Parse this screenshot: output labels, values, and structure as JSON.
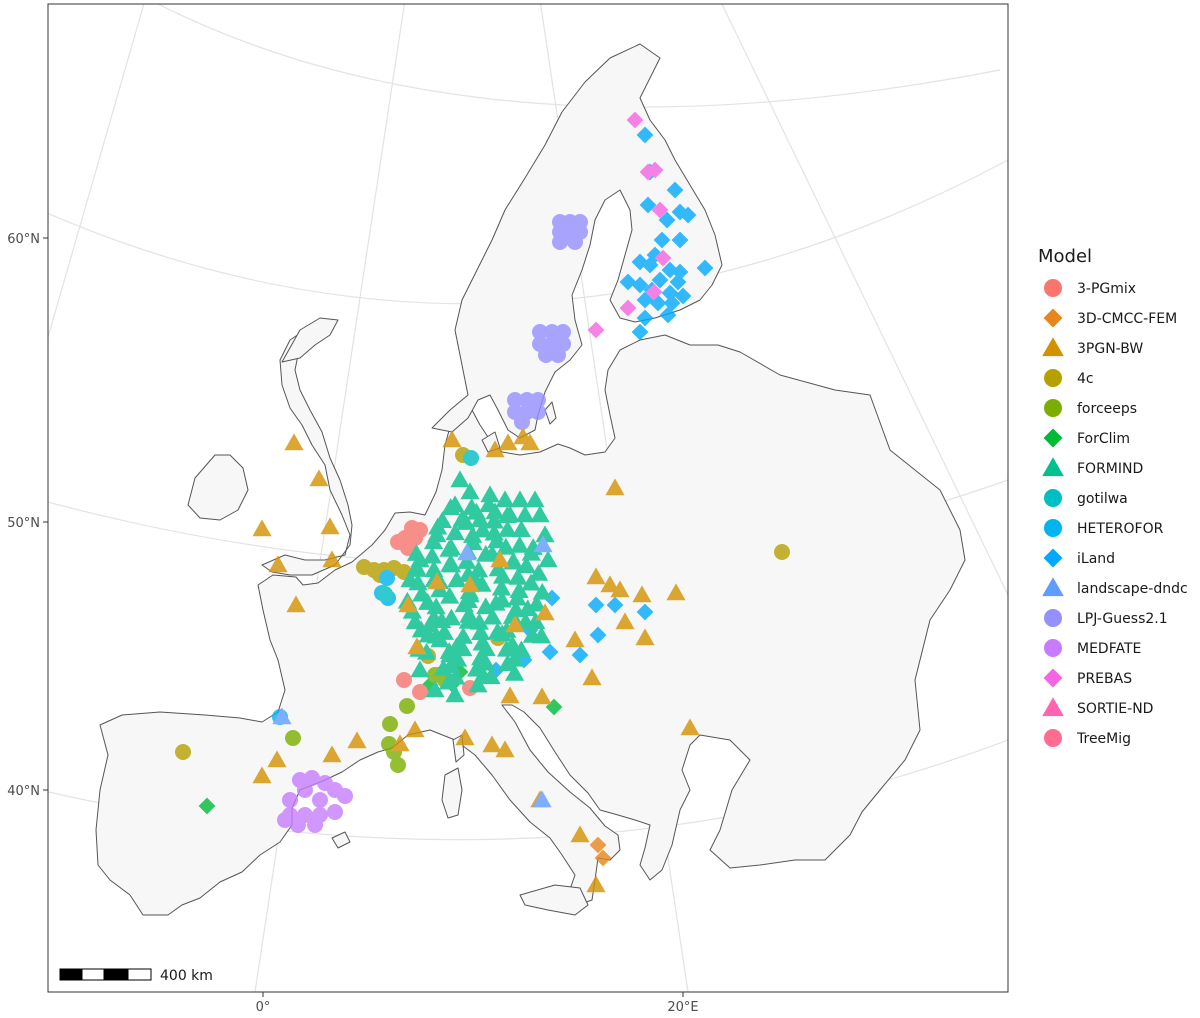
{
  "axes": {
    "lat_labels": [
      "60°N",
      "50°N",
      "40°N"
    ],
    "lon_labels": [
      "0°",
      "20°E"
    ]
  },
  "legend": {
    "title": "Model",
    "items": [
      {
        "label": "3-PGmix",
        "shape": "circle",
        "color": "#F8766D"
      },
      {
        "label": "3D-CMCC-FEM",
        "shape": "diamond",
        "color": "#E7861B"
      },
      {
        "label": "3PGN-BW",
        "shape": "triangle",
        "color": "#D39200"
      },
      {
        "label": "4c",
        "shape": "circle",
        "color": "#B79F00"
      },
      {
        "label": "forceeps",
        "shape": "circle",
        "color": "#7CAE00"
      },
      {
        "label": "ForClim",
        "shape": "diamond",
        "color": "#00BA38"
      },
      {
        "label": "FORMIND",
        "shape": "triangle",
        "color": "#00C08B"
      },
      {
        "label": "gotilwa",
        "shape": "circle",
        "color": "#00BFC4"
      },
      {
        "label": "HETEROFOR",
        "shape": "circle",
        "color": "#00B4F0"
      },
      {
        "label": "iLand",
        "shape": "diamond",
        "color": "#00A9FF"
      },
      {
        "label": "landscape-dndc",
        "shape": "triangle",
        "color": "#619CFF"
      },
      {
        "label": "LPJ-Guess2.1",
        "shape": "circle",
        "color": "#9590FF"
      },
      {
        "label": "MEDFATE",
        "shape": "circle",
        "color": "#C77CFF"
      },
      {
        "label": "PREBAS",
        "shape": "diamond",
        "color": "#F564E3"
      },
      {
        "label": "SORTIE-ND",
        "shape": "triangle",
        "color": "#FF64B0"
      },
      {
        "label": "TreeMig",
        "shape": "circle",
        "color": "#FF6C91"
      }
    ]
  },
  "scale_bar": {
    "label": "400 km"
  },
  "colors": {
    "land": "#f7f7f7",
    "coast": "#555555",
    "grid": "#e3e3e3",
    "frame": "#333333"
  }
}
